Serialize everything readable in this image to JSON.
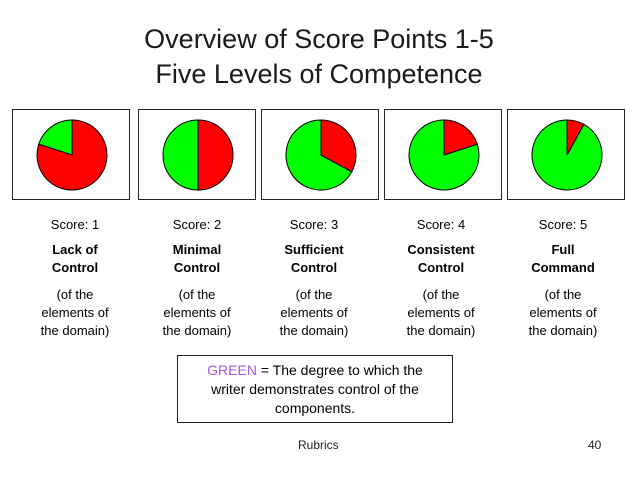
{
  "title": {
    "line1": "Overview of Score Points 1-5",
    "line2": "Five Levels of Competence"
  },
  "colors": {
    "green": "#00ff00",
    "red": "#ff0000",
    "legend_word": "#a855f7"
  },
  "chart_data": {
    "type": "pie",
    "categories": [
      "Score: 1",
      "Score: 2",
      "Score: 3",
      "Score: 4",
      "Score: 5"
    ],
    "series": [
      {
        "values": [
          0.2,
          0.5,
          0.67,
          0.8,
          0.92
        ]
      },
      {
        "values": [
          0.8,
          0.5,
          0.33,
          0.2,
          0.08
        ]
      }
    ]
  },
  "columns": [
    {
      "score": "Score: 1",
      "level_line1": "Lack of",
      "level_line2": "Control",
      "desc_line1": "(of the",
      "desc_line2": "elements of",
      "desc_line3": "the domain)"
    },
    {
      "score": "Score: 2",
      "level_line1": "Minimal",
      "level_line2": "Control",
      "desc_line1": "(of the",
      "desc_line2": "elements of",
      "desc_line3": "the domain)"
    },
    {
      "score": "Score: 3",
      "level_line1": "Sufficient",
      "level_line2": "Control",
      "desc_line1": "(of the",
      "desc_line2": "elements of",
      "desc_line3": "the domain)"
    },
    {
      "score": "Score: 4",
      "level_line1": "Consistent",
      "level_line2": "Control",
      "desc_line1": "(of the",
      "desc_line2": "elements of",
      "desc_line3": "the domain)"
    },
    {
      "score": "Score: 5",
      "level_line1": "Full",
      "level_line2": "Command",
      "desc_line1": "(of the",
      "desc_line2": "elements of",
      "desc_line3": "the domain)"
    }
  ],
  "legend": {
    "green_word": "GREEN",
    "line1_rest": " = The degree to which the",
    "line2": "writer demonstrates control of the",
    "line3": "components."
  },
  "footer": {
    "label": "Rubrics",
    "page": "40"
  }
}
